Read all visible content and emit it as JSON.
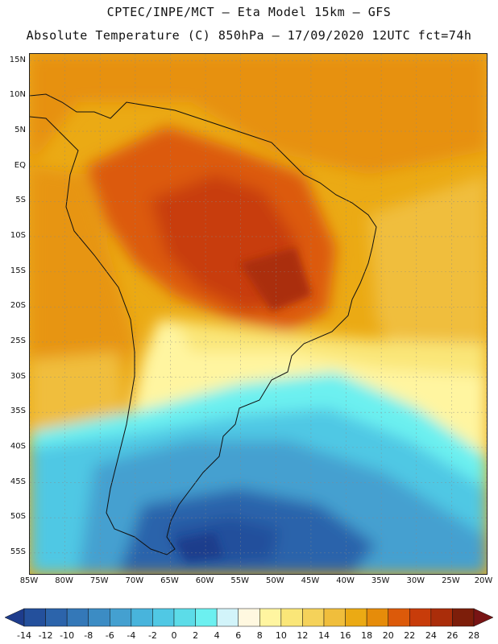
{
  "header": {
    "line1": "CPTEC/INPE/MCT –  Eta Model 15km – GFS",
    "line2": "Absolute Temperature (C) 850hPa – 17/09/2020 12UTC fct=74h"
  },
  "map": {
    "lat_labels": [
      "15N",
      "10N",
      "5N",
      "EQ",
      "5S",
      "10S",
      "15S",
      "20S",
      "25S",
      "30S",
      "35S",
      "40S",
      "45S",
      "50S",
      "55S"
    ],
    "lat_values": [
      15,
      10,
      5,
      0,
      -5,
      -10,
      -15,
      -20,
      -25,
      -30,
      -35,
      -40,
      -45,
      -50,
      -55
    ],
    "lon_labels": [
      "85W",
      "80W",
      "75W",
      "70W",
      "65W",
      "60W",
      "55W",
      "50W",
      "45W",
      "40W",
      "35W",
      "30W",
      "25W",
      "20W"
    ],
    "lon_values": [
      -85,
      -80,
      -75,
      -70,
      -65,
      -60,
      -55,
      -50,
      -45,
      -40,
      -35,
      -30,
      -25,
      -20
    ],
    "extent": {
      "lon_min": -85,
      "lon_max": -20,
      "lat_min": -58,
      "lat_max": 16
    }
  },
  "colorbar": {
    "labels": [
      "-14",
      "-12",
      "-10",
      "-8",
      "-6",
      "-4",
      "-2",
      "0",
      "2",
      "4",
      "6",
      "8",
      "10",
      "12",
      "14",
      "16",
      "18",
      "20",
      "22",
      "24",
      "26",
      "28"
    ],
    "colors": [
      "#1e3c8c",
      "#24509c",
      "#2c64ab",
      "#3478b8",
      "#3c8cc4",
      "#44a0d0",
      "#48b4dc",
      "#50c8e4",
      "#5cdce8",
      "#6cf0f0",
      "#d2f4fa",
      "#fff8e0",
      "#fff5a0",
      "#fae678",
      "#f5d25a",
      "#f0be3c",
      "#ebaa14",
      "#e68c0a",
      "#dc5a0a",
      "#c83c0a",
      "#aa2d0a",
      "#7d1e0a",
      "#781414"
    ]
  }
}
